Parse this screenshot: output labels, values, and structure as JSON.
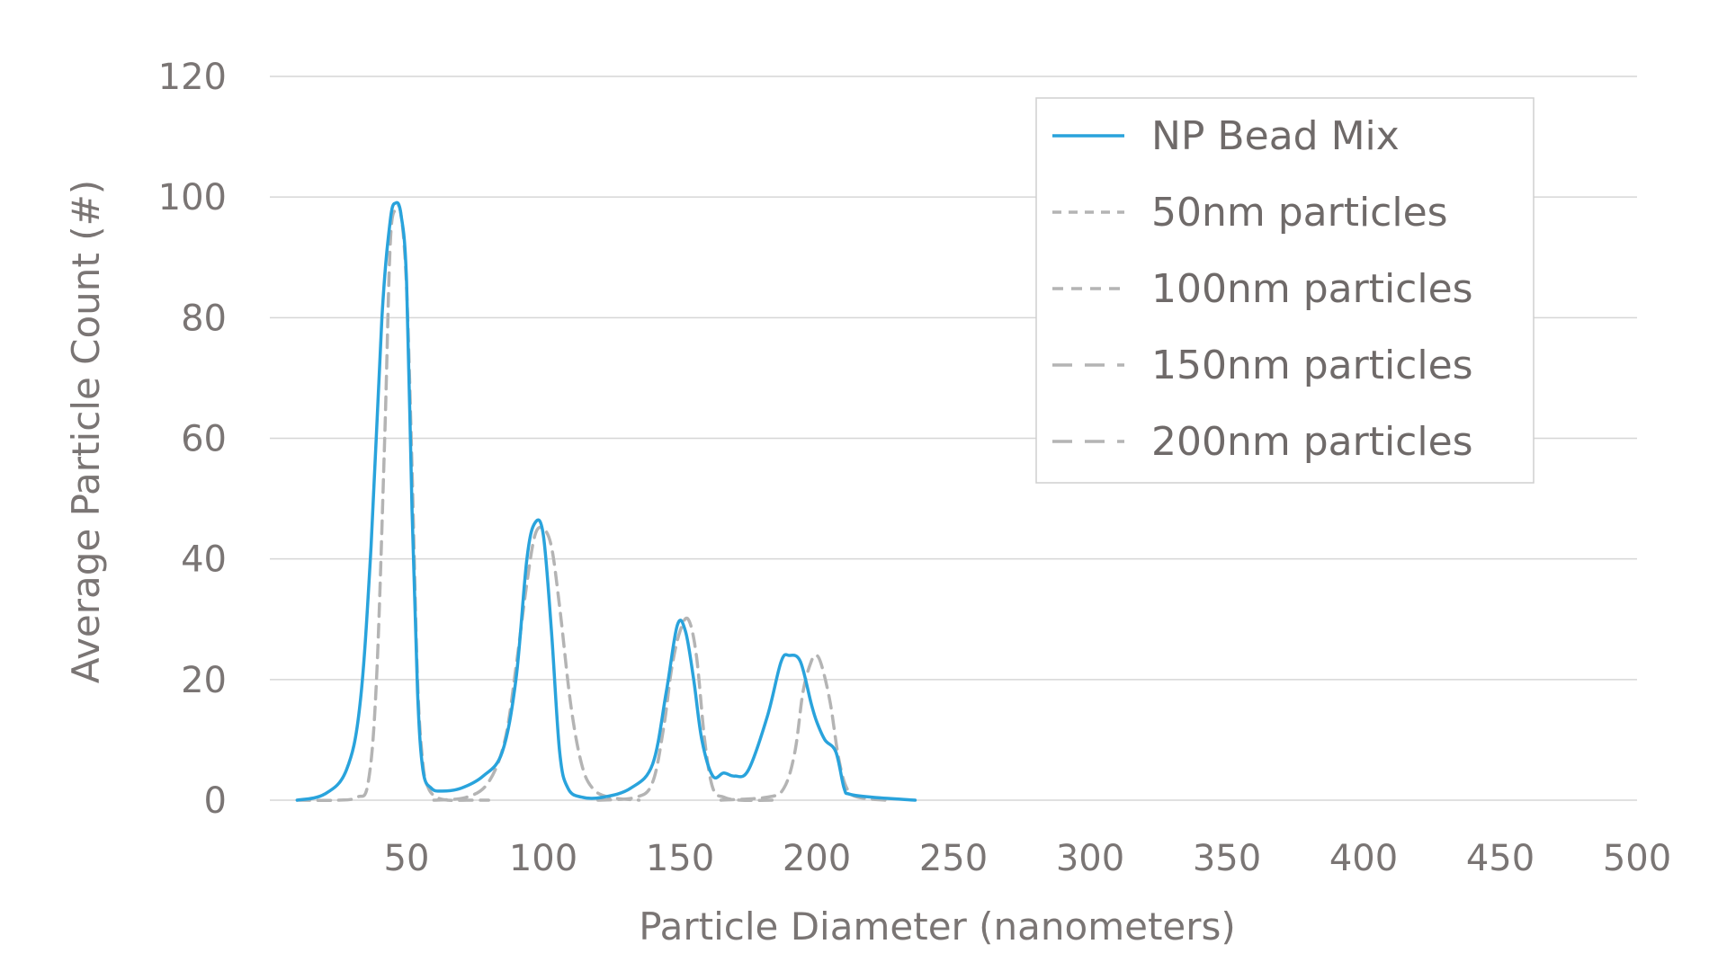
{
  "chart_data": {
    "type": "line",
    "title": "",
    "xlabel": "Particle Diameter (nanometers)",
    "ylabel": "Average Particle Count (#)",
    "xlim": [
      0,
      500
    ],
    "ylim": [
      0,
      120
    ],
    "x_ticks": [
      50,
      100,
      150,
      200,
      250,
      300,
      350,
      400,
      450,
      500
    ],
    "y_ticks": [
      0,
      20,
      40,
      60,
      80,
      100,
      120
    ],
    "grid": "horizontal",
    "legend": "top-right",
    "colors": {
      "NP Bead Mix": "#29a3dc",
      "particles": "#b4b4b4",
      "grid": "#d6d6d6",
      "text": "#7a7574"
    },
    "series": [
      {
        "name": "NP Bead Mix",
        "style": "solid",
        "x": [
          10,
          20,
          28,
          33,
          37,
          41,
          44,
          46,
          48,
          50,
          52,
          54,
          56,
          59,
          63,
          70,
          78,
          85,
          90,
          94,
          97,
          100,
          103,
          106,
          109,
          114,
          122,
          132,
          140,
          145,
          149,
          152,
          155,
          158,
          162,
          166,
          170,
          175,
          182,
          187,
          190,
          194,
          198,
          200,
          203,
          207,
          210,
          212,
          220,
          236
        ],
        "y": [
          0,
          1,
          5,
          16,
          42,
          80,
          96,
          99,
          97,
          86,
          48,
          18,
          5,
          2,
          1.5,
          2,
          4,
          8,
          20,
          40,
          46,
          44,
          28,
          8,
          2,
          0.5,
          0.5,
          2,
          6,
          18,
          29,
          28,
          20,
          10,
          4,
          4.5,
          4,
          5,
          14,
          23,
          24,
          23,
          16,
          13,
          10,
          8,
          2,
          1,
          0.5,
          0
        ]
      },
      {
        "name": "50nm particles",
        "style": "dashed",
        "x": [
          10,
          25,
          32,
          36,
          39,
          42,
          44,
          46,
          48,
          50,
          52,
          54,
          56,
          58,
          61,
          65,
          72,
          80
        ],
        "y": [
          0,
          0,
          0.5,
          3,
          20,
          60,
          92,
          98,
          97,
          85,
          55,
          20,
          6,
          2,
          0.5,
          0,
          0,
          0
        ]
      },
      {
        "name": "100nm particles",
        "style": "dashed",
        "x": [
          60,
          72,
          80,
          86,
          90,
          94,
          97,
          100,
          103,
          106,
          110,
          114,
          118,
          124,
          135
        ],
        "y": [
          0,
          0.5,
          3,
          10,
          22,
          36,
          44,
          45,
          42,
          32,
          16,
          6,
          2,
          0.5,
          0
        ]
      },
      {
        "name": "150nm particles",
        "style": "dashed",
        "x": [
          120,
          134,
          140,
          144,
          147,
          150,
          153,
          156,
          159,
          162,
          166,
          172,
          185
        ],
        "y": [
          0,
          0.5,
          3,
          12,
          22,
          28,
          30,
          24,
          10,
          2,
          0.5,
          0,
          0
        ]
      },
      {
        "name": "200nm particles",
        "style": "dashed",
        "x": [
          165,
          182,
          188,
          192,
          195,
          198,
          200,
          202,
          205,
          208,
          211,
          215,
          225
        ],
        "y": [
          0,
          0.5,
          2,
          8,
          18,
          23,
          24,
          22,
          16,
          7,
          2,
          0.5,
          0
        ]
      }
    ]
  }
}
